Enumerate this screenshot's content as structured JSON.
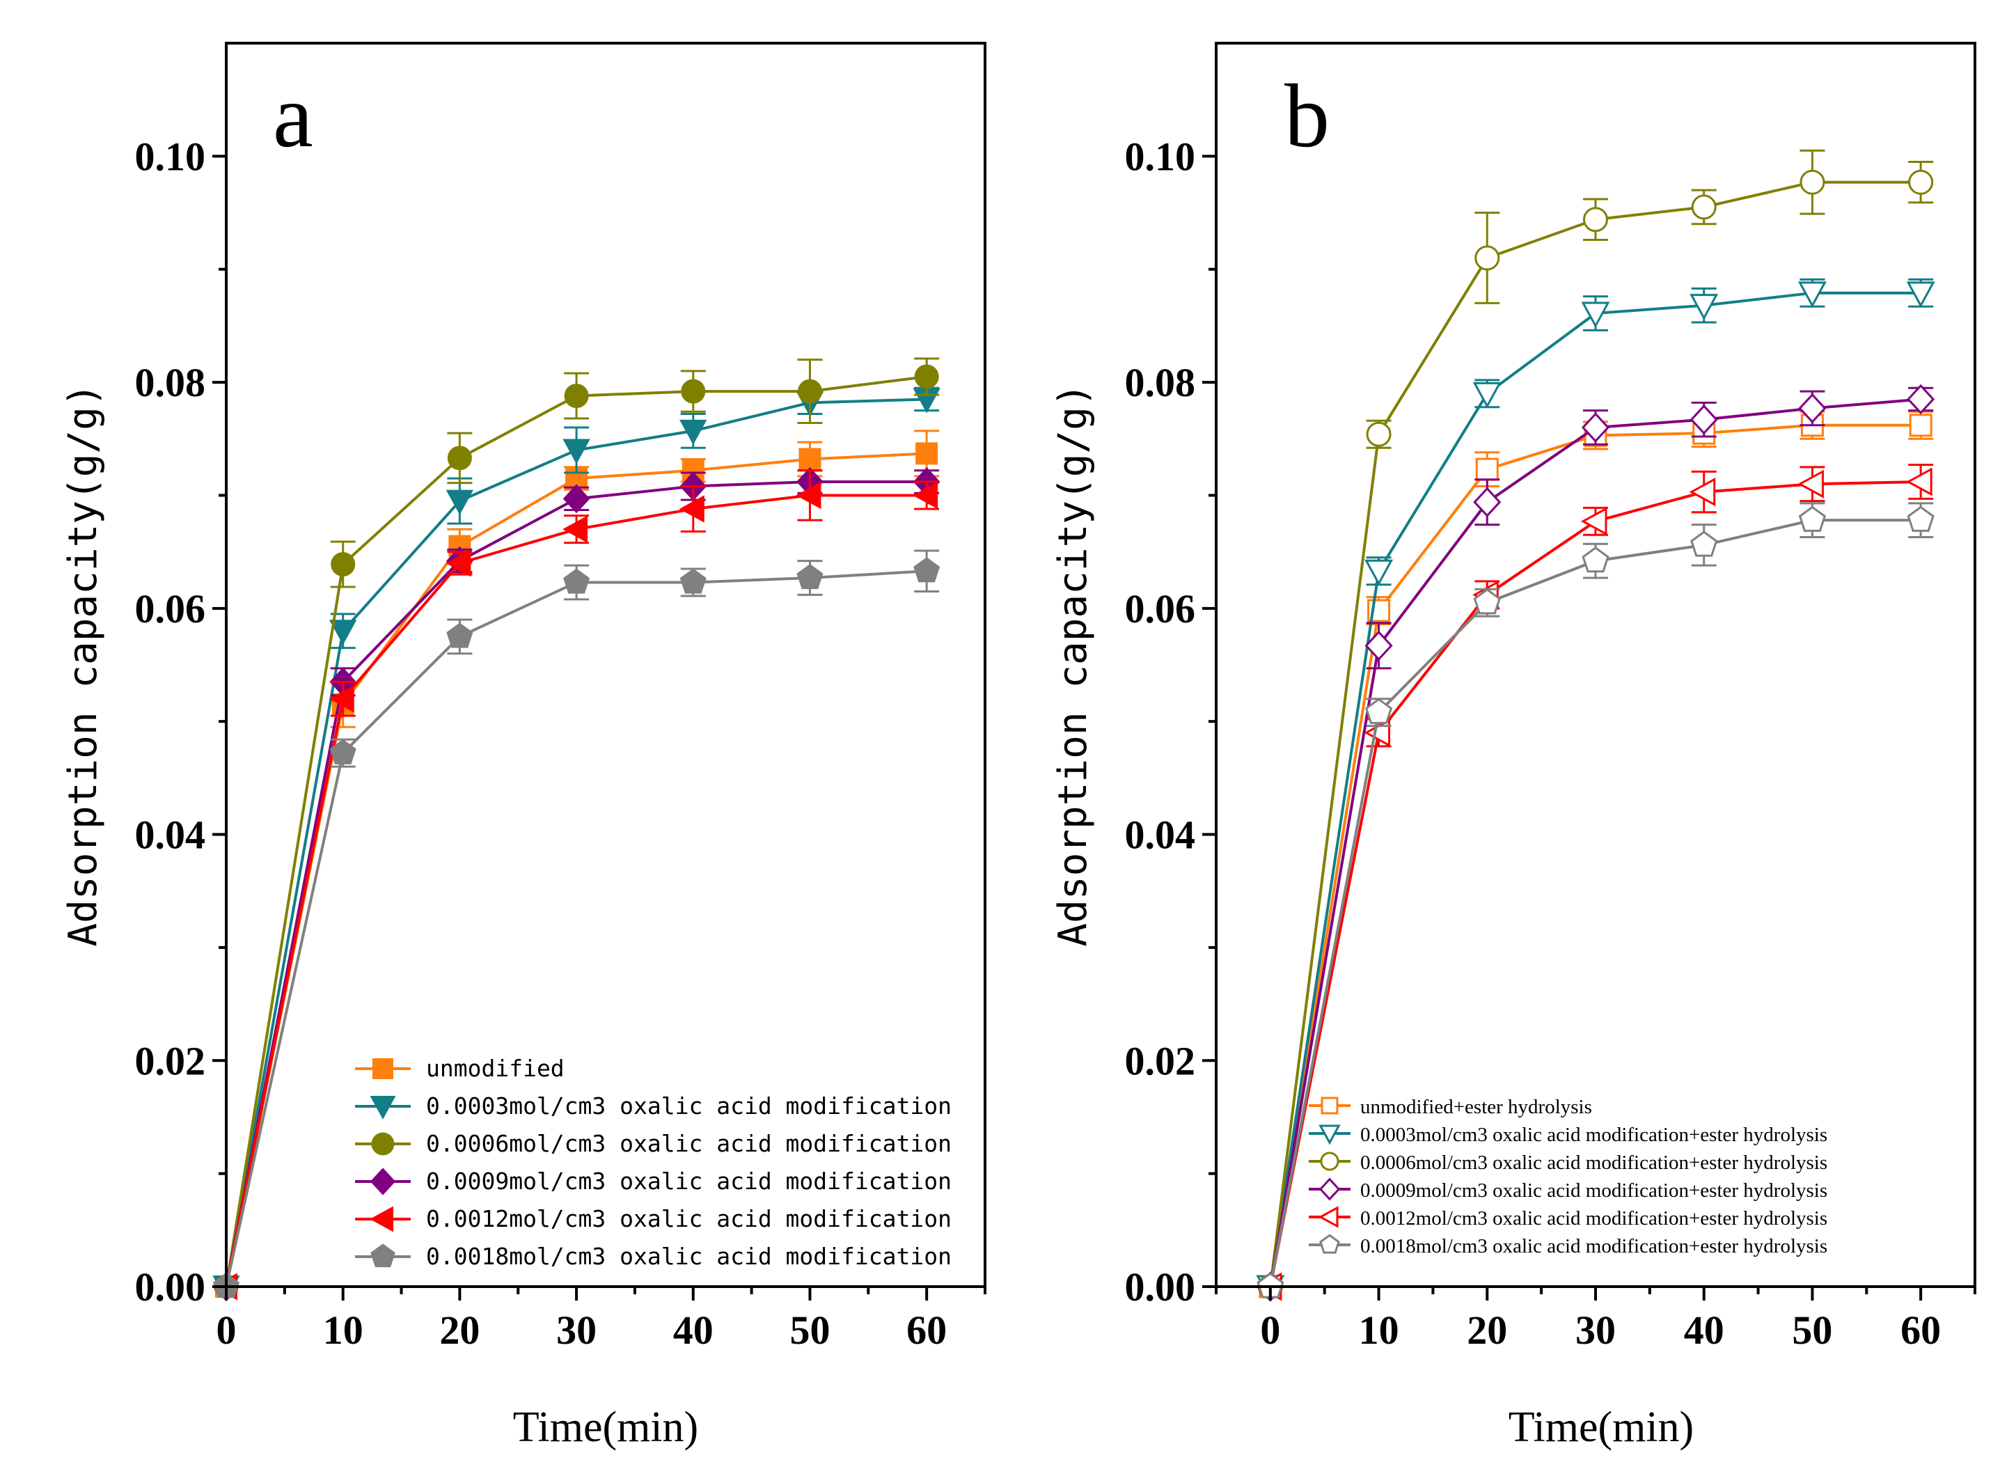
{
  "chart_data": [
    {
      "panel": "a",
      "type": "line",
      "panel_label": "a",
      "xlabel": "Time(min)",
      "ylabel": "Adsorption capacity(g/g)",
      "xlim": [
        0,
        65
      ],
      "ylim": [
        0,
        0.11
      ],
      "xticks": [
        "0",
        "10",
        "20",
        "30",
        "40",
        "50",
        "60"
      ],
      "yticks": [
        "0.00",
        "0.02",
        "0.04",
        "0.06",
        "0.08",
        "0.10"
      ],
      "x": [
        0,
        10,
        20,
        30,
        40,
        50,
        60
      ],
      "legend_position": "bottom-right",
      "series": [
        {
          "name": "unmodified",
          "color": "#FF7F0E",
          "marker": "square",
          "filled": true,
          "values": [
            0,
            0.0515,
            0.0655,
            0.0715,
            0.0722,
            0.0732,
            0.0737
          ],
          "errors": [
            0,
            0.002,
            0.0015,
            0.001,
            0.001,
            0.0015,
            0.002
          ]
        },
        {
          "name": "0.0003mol/cm3 oxalic acid modification",
          "color": "#127E87",
          "marker": "triangle-down",
          "filled": true,
          "values": [
            0,
            0.058,
            0.0695,
            0.074,
            0.0757,
            0.0782,
            0.0785
          ],
          "errors": [
            0,
            0.0015,
            0.002,
            0.002,
            0.0015,
            0.001,
            0.001
          ]
        },
        {
          "name": "0.0006mol/cm3 oxalic acid modification",
          "color": "#808000",
          "marker": "circle",
          "filled": true,
          "values": [
            0,
            0.0639,
            0.0733,
            0.0788,
            0.0792,
            0.0792,
            0.0805
          ],
          "errors": [
            0,
            0.002,
            0.0022,
            0.002,
            0.0018,
            0.0028,
            0.0016
          ]
        },
        {
          "name": "0.0009mol/cm3 oxalic acid modification",
          "color": "#800080",
          "marker": "diamond",
          "filled": true,
          "values": [
            0,
            0.0535,
            0.0642,
            0.0697,
            0.0708,
            0.0712,
            0.0712
          ],
          "errors": [
            0,
            0.0012,
            0.001,
            0.001,
            0.0012,
            0.001,
            0.001
          ]
        },
        {
          "name": "0.0012mol/cm3 oxalic acid modification",
          "color": "#FF0000",
          "marker": "triangle-left",
          "filled": true,
          "values": [
            0,
            0.052,
            0.064,
            0.067,
            0.0688,
            0.07,
            0.07
          ],
          "errors": [
            0,
            0.0015,
            0.001,
            0.0012,
            0.002,
            0.0022,
            0.0012
          ]
        },
        {
          "name": "0.0018mol/cm3 oxalic acid modification",
          "color": "#808080",
          "marker": "pentagon",
          "filled": true,
          "values": [
            0,
            0.0472,
            0.0575,
            0.0623,
            0.0623,
            0.0627,
            0.0633
          ],
          "errors": [
            0,
            0.0012,
            0.0015,
            0.0015,
            0.0012,
            0.0015,
            0.0018
          ]
        }
      ]
    },
    {
      "panel": "b",
      "type": "line",
      "panel_label": "b",
      "xlabel": "Time(min)",
      "ylabel": "Adsorption capacity(g/g)",
      "xlim": [
        -5,
        65
      ],
      "ylim": [
        0,
        0.11
      ],
      "xticks": [
        "0",
        "10",
        "20",
        "30",
        "40",
        "50",
        "60"
      ],
      "yticks": [
        "0.00",
        "0.02",
        "0.04",
        "0.06",
        "0.08",
        "0.10"
      ],
      "x": [
        0,
        10,
        20,
        30,
        40,
        50,
        60
      ],
      "legend_position": "bottom-right",
      "series": [
        {
          "name": "unmodified+ester hydrolysis",
          "color": "#FF7F0E",
          "marker": "square",
          "filled": false,
          "values": [
            0,
            0.0598,
            0.0723,
            0.0753,
            0.0755,
            0.0762,
            0.0762
          ],
          "errors": [
            0,
            0.0012,
            0.0015,
            0.0012,
            0.0012,
            0.0012,
            0.0012
          ]
        },
        {
          "name": "0.0003mol/cm3 oxalic acid modification+ester hydrolysis",
          "color": "#127E87",
          "marker": "triangle-down",
          "filled": false,
          "values": [
            0,
            0.0633,
            0.079,
            0.0861,
            0.0868,
            0.0879,
            0.0879
          ],
          "errors": [
            0,
            0.0012,
            0.0012,
            0.0015,
            0.0015,
            0.0012,
            0.0012
          ]
        },
        {
          "name": "0.0006mol/cm3 oxalic acid modification+ester hydrolysis",
          "color": "#808000",
          "marker": "circle",
          "filled": false,
          "values": [
            0,
            0.0754,
            0.091,
            0.0944,
            0.0955,
            0.0977,
            0.0977
          ],
          "errors": [
            0,
            0.0012,
            0.004,
            0.0018,
            0.0015,
            0.0028,
            0.0018
          ]
        },
        {
          "name": "0.0009mol/cm3 oxalic acid modification+ester hydrolysis",
          "color": "#800080",
          "marker": "diamond",
          "filled": false,
          "values": [
            0,
            0.0567,
            0.0694,
            0.076,
            0.0767,
            0.0777,
            0.0785
          ],
          "errors": [
            0,
            0.002,
            0.002,
            0.0015,
            0.0015,
            0.0015,
            0.001
          ]
        },
        {
          "name": "0.0012mol/cm3 oxalic acid modification+ester hydrolysis",
          "color": "#FF0000",
          "marker": "triangle-left",
          "filled": false,
          "values": [
            0,
            0.049,
            0.0612,
            0.0677,
            0.0703,
            0.071,
            0.0712
          ],
          "errors": [
            0,
            0.0012,
            0.0012,
            0.0012,
            0.0018,
            0.0015,
            0.0015
          ]
        },
        {
          "name": "0.0018mol/cm3 oxalic acid modification+ester hydrolysis",
          "color": "#808080",
          "marker": "pentagon",
          "filled": false,
          "values": [
            0,
            0.0508,
            0.0605,
            0.0642,
            0.0656,
            0.0678,
            0.0678
          ],
          "errors": [
            0,
            0.0012,
            0.0012,
            0.0015,
            0.0018,
            0.0015,
            0.0015
          ]
        }
      ]
    }
  ]
}
